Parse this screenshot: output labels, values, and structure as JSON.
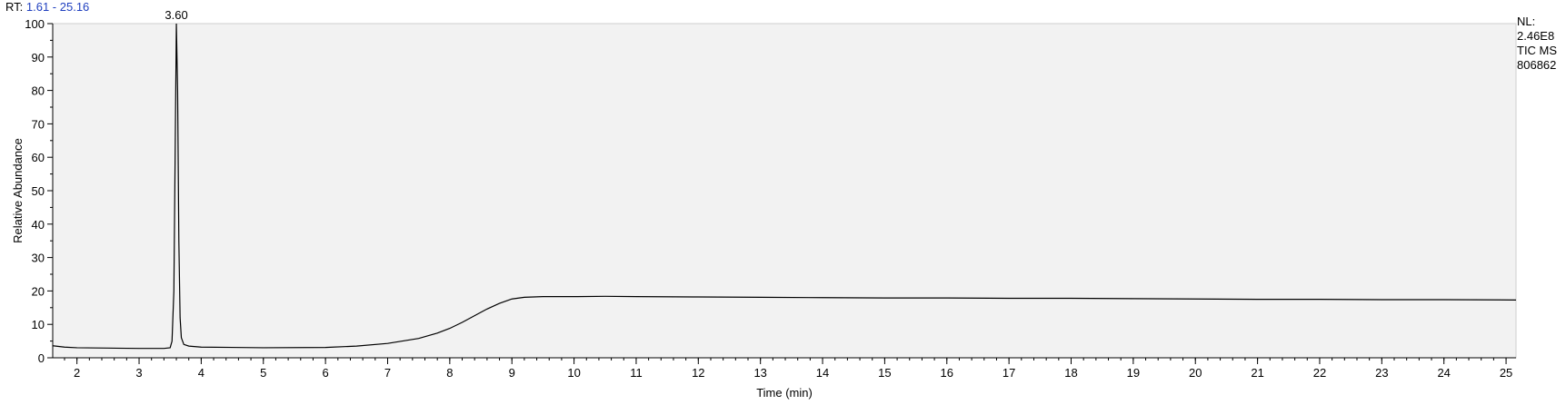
{
  "header": {
    "rt_label": "RT:",
    "rt_range": "1.61 - 25.16",
    "rt_color": "#1f3fbf"
  },
  "info": {
    "nl_label": "NL:",
    "nl_value": "2.46E8",
    "scan_type": "TIC  MS",
    "file_id": "806862"
  },
  "chart_data": {
    "type": "line",
    "title": "",
    "xlabel": "Time (min)",
    "ylabel": "Relative Abundance",
    "xlim": [
      1.61,
      25.16
    ],
    "ylim": [
      0,
      100
    ],
    "xticks": [
      2,
      3,
      4,
      5,
      6,
      7,
      8,
      9,
      10,
      11,
      12,
      13,
      14,
      15,
      16,
      17,
      18,
      19,
      20,
      21,
      22,
      23,
      24,
      25
    ],
    "yticks": [
      0,
      10,
      20,
      30,
      40,
      50,
      60,
      70,
      80,
      90,
      100
    ],
    "grid": false,
    "plot_background": "#f2f2f2",
    "line_color": "#000000",
    "annotations": [
      {
        "x": 3.6,
        "y": 100,
        "text": "3.60"
      }
    ],
    "series": [
      {
        "x": [
          1.61,
          1.8,
          2.0,
          2.5,
          3.0,
          3.4,
          3.5,
          3.53,
          3.56,
          3.58,
          3.6,
          3.62,
          3.64,
          3.66,
          3.68,
          3.72,
          3.8,
          4.0,
          5.0,
          6.0,
          6.5,
          7.0,
          7.5,
          7.8,
          8.0,
          8.2,
          8.4,
          8.6,
          8.8,
          9.0,
          9.2,
          9.5,
          10.0,
          10.5,
          11.0,
          12.0,
          13.0,
          14.0,
          15.0,
          16.0,
          17.0,
          18.0,
          19.0,
          20.0,
          21.0,
          22.0,
          23.0,
          24.0,
          25.16
        ],
        "y": [
          3.6,
          3.2,
          3.0,
          2.9,
          2.8,
          2.8,
          3.0,
          5.0,
          20.0,
          60.0,
          100.0,
          80.0,
          35.0,
          12.0,
          6.0,
          4.0,
          3.5,
          3.2,
          3.0,
          3.1,
          3.5,
          4.3,
          5.8,
          7.4,
          8.8,
          10.6,
          12.6,
          14.6,
          16.3,
          17.6,
          18.1,
          18.3,
          18.3,
          18.4,
          18.3,
          18.2,
          18.1,
          18.0,
          17.9,
          17.9,
          17.8,
          17.8,
          17.7,
          17.6,
          17.5,
          17.5,
          17.4,
          17.4,
          17.3
        ]
      }
    ]
  }
}
